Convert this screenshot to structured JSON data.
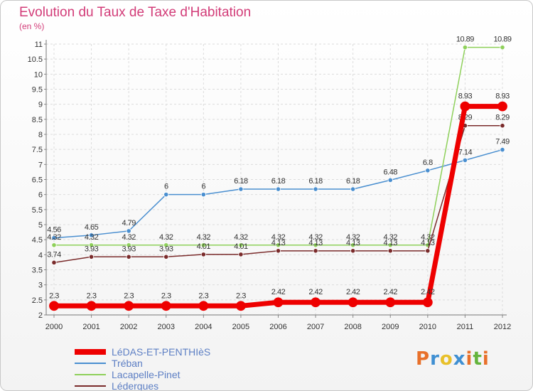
{
  "title": "Evolution du Taux de Taxe d'Habitation",
  "unit": "(en %)",
  "logo": {
    "text": "Proxiti",
    "colors": [
      "#e8702a",
      "#3f8fd2",
      "#e8c02a",
      "#3f8fd2",
      "#e8702a",
      "#64b43c",
      "#e8702a"
    ]
  },
  "chart_data": {
    "type": "line",
    "x": [
      "2000",
      "2001",
      "2002",
      "2003",
      "2004",
      "2005",
      "2006",
      "2007",
      "2008",
      "2009",
      "2010",
      "2011",
      "2012"
    ],
    "ylim": [
      2,
      11
    ],
    "yticks": [
      "2",
      "2.5",
      "3",
      "3.5",
      "4",
      "4.5",
      "5",
      "5.5",
      "6",
      "6.5",
      "7",
      "7.5",
      "8",
      "8.5",
      "9",
      "9.5",
      "10",
      "10.5",
      "11"
    ],
    "grid": true,
    "legend": "bottom-left",
    "series": [
      {
        "name": "Tréban",
        "color": "#4a8fd0",
        "width": 1.5,
        "values": [
          4.56,
          4.65,
          4.79,
          6,
          6,
          6.18,
          6.18,
          6.18,
          6.18,
          6.48,
          6.8,
          7.14,
          7.49
        ],
        "labels": [
          "4.56",
          "4.65",
          "4.79",
          "6",
          "6",
          "6.18",
          "6.18",
          "6.18",
          "6.18",
          "6.48",
          "6.8",
          "7.14",
          "7.49"
        ]
      },
      {
        "name": "Lacapelle-Pinet",
        "color": "#8ed05a",
        "width": 1.5,
        "values": [
          4.32,
          4.32,
          4.32,
          4.32,
          4.32,
          4.32,
          4.32,
          4.32,
          4.32,
          4.32,
          4.32,
          10.89,
          10.89
        ],
        "labels": [
          "4.32",
          "4.32",
          "4.32",
          "4.32",
          "4.32",
          "4.32",
          "4.32",
          "4.32",
          "4.32",
          "4.32",
          "4.32",
          "10.89",
          "10.89"
        ]
      },
      {
        "name": "Lédergues",
        "color": "#7a2b2b",
        "width": 1.5,
        "values": [
          3.74,
          3.93,
          3.93,
          3.93,
          4.01,
          4.01,
          4.13,
          4.13,
          4.13,
          4.13,
          4.13,
          8.29,
          8.29
        ],
        "labels": [
          "3.74",
          "3.93",
          "3.93",
          "3.93",
          "4.01",
          "4.01",
          "4.13",
          "4.13",
          "4.13",
          "4.13",
          "4.13",
          "8.29",
          "8.29"
        ]
      },
      {
        "name": "LéDAS-ET-PENTHIèS",
        "color": "#ee0000",
        "width": 7,
        "values": [
          2.3,
          2.3,
          2.3,
          2.3,
          2.3,
          2.3,
          2.42,
          2.42,
          2.42,
          2.42,
          2.42,
          8.93,
          8.93
        ],
        "labels": [
          "2.3",
          "2.3",
          "2.3",
          "2.3",
          "2.3",
          "2.3",
          "2.42",
          "2.42",
          "2.42",
          "2.42",
          "2.42",
          "8.93",
          "8.93"
        ]
      }
    ]
  }
}
